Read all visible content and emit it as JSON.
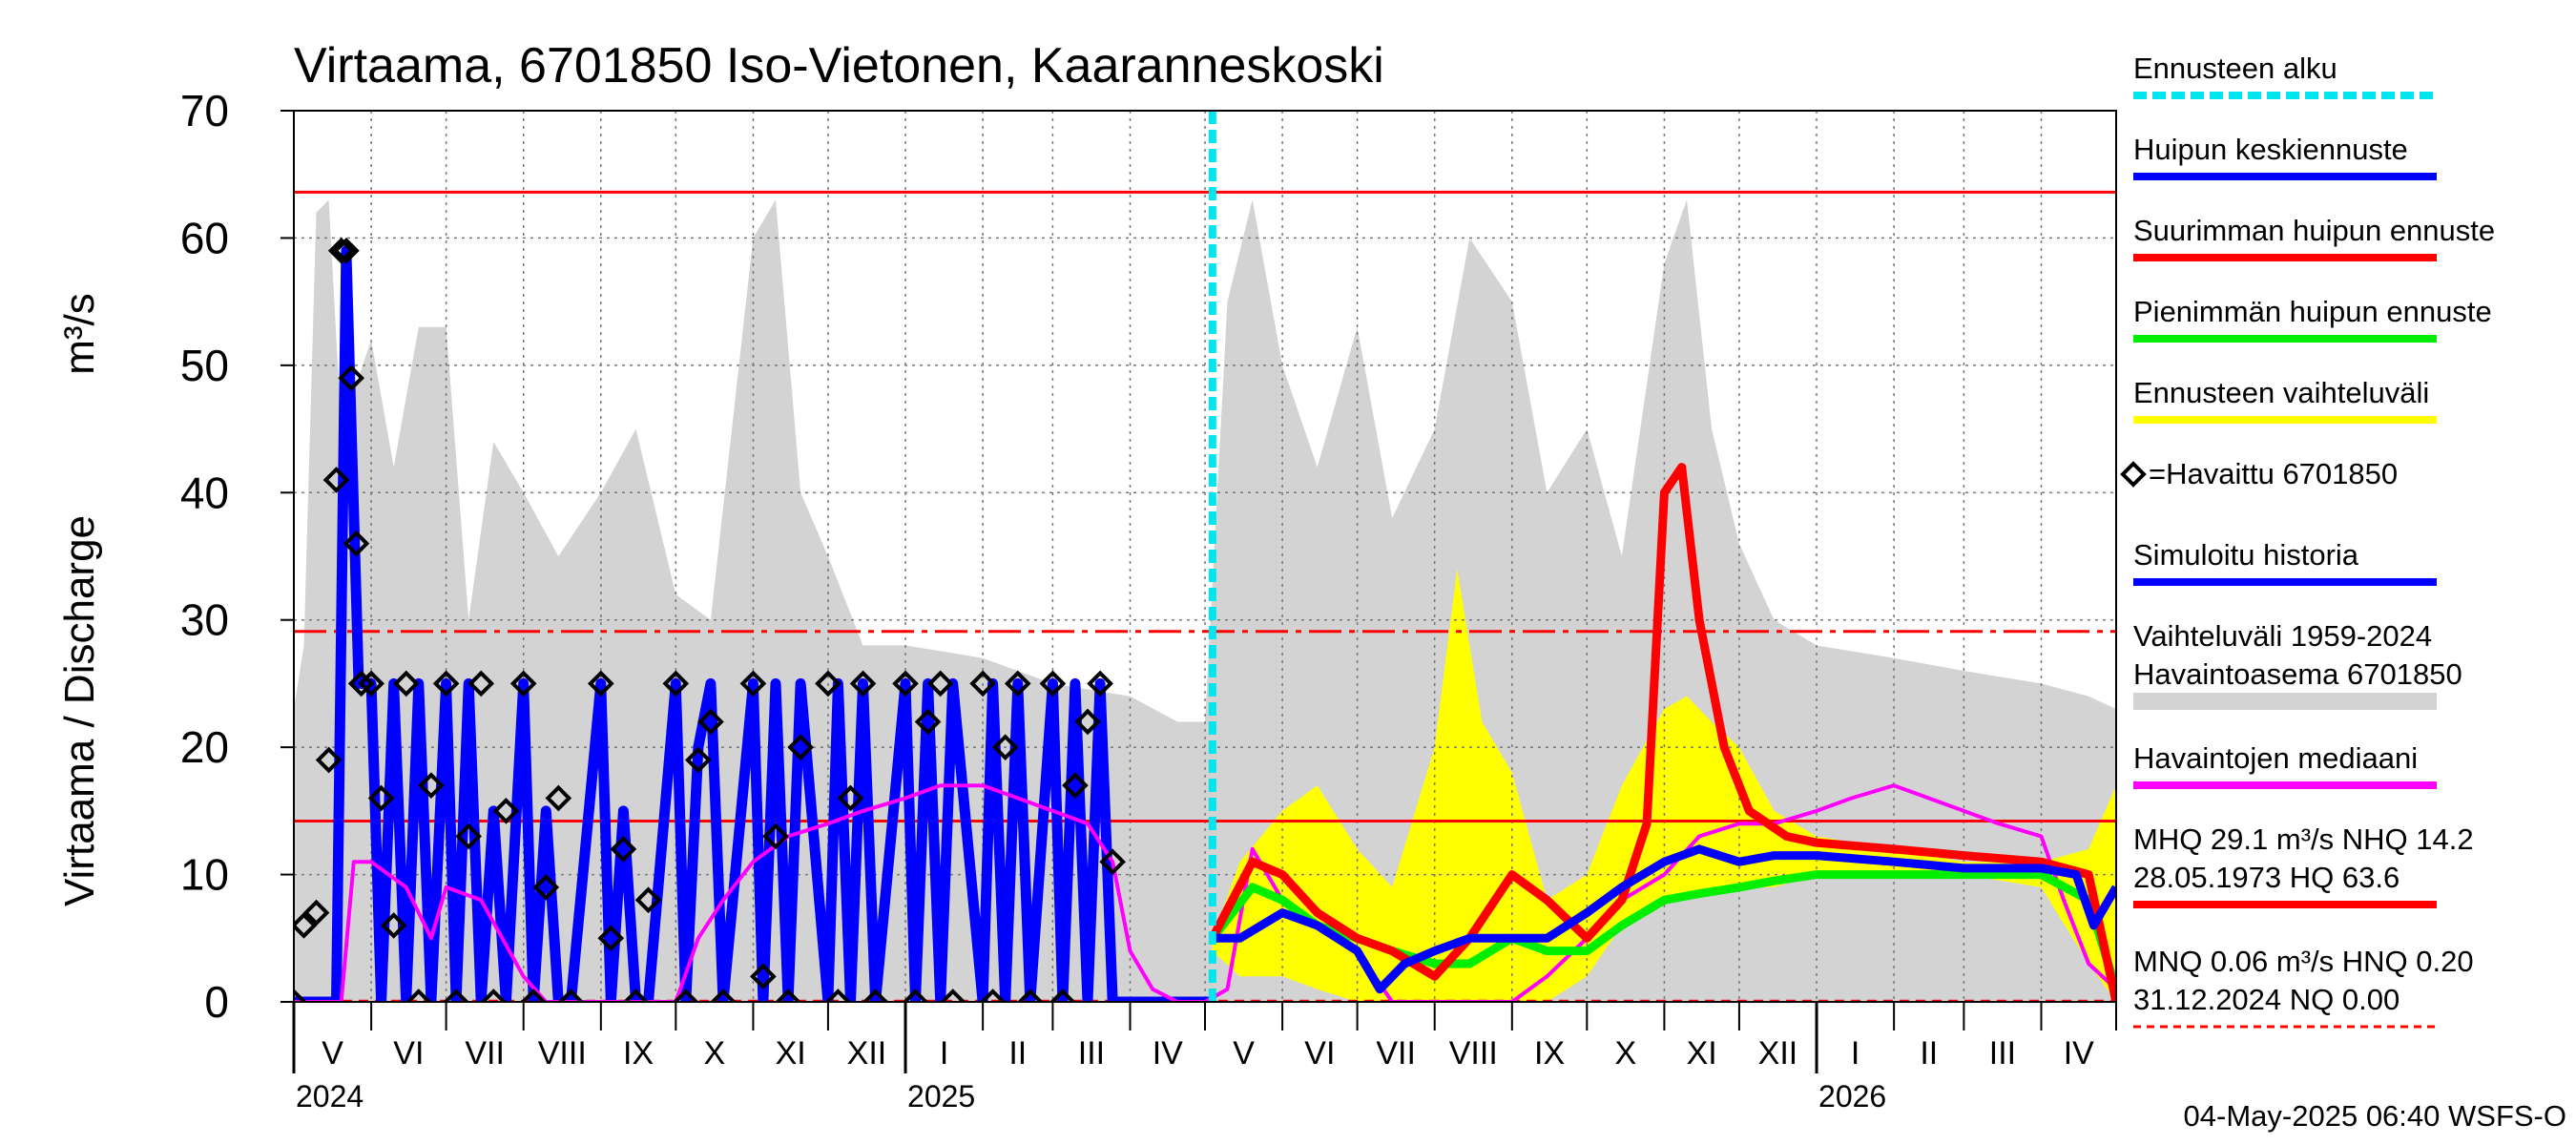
{
  "chart_data": {
    "type": "line",
    "title": "Virtaama, 6701850 Iso-Vietonen, Kaaranneskoski",
    "ylabel_left": "Virtaama / Discharge",
    "ylabel_unit": "m³/s",
    "ylim": [
      0,
      70
    ],
    "yticks": [
      0,
      10,
      20,
      30,
      40,
      50,
      60,
      70
    ],
    "yticks_labels": [
      "0",
      "10",
      "20",
      "30",
      "40",
      "50",
      "60",
      "70"
    ],
    "x_axis": {
      "start": "2024-05-01",
      "end": "2026-05-01",
      "month_labels": [
        "V",
        "VI",
        "VII",
        "VIII",
        "IX",
        "X",
        "XI",
        "XII",
        "I",
        "II",
        "III",
        "IV",
        "V",
        "VI",
        "VII",
        "VIII",
        "IX",
        "X",
        "XI",
        "XII",
        "I",
        "II",
        "III",
        "IV"
      ],
      "year_labels": [
        {
          "text": "2024",
          "date": "2024-05-01"
        },
        {
          "text": "2025",
          "date": "2025-01-01"
        },
        {
          "text": "2026",
          "date": "2026-01-01"
        }
      ]
    },
    "grid": true,
    "forecast_start": "2025-05-04",
    "reference_lines": [
      {
        "name": "HQ",
        "value": 63.6,
        "style": "solid",
        "color": "#ff0000"
      },
      {
        "name": "MHQ",
        "value": 29.1,
        "style": "dashdot",
        "color": "#ff0000"
      },
      {
        "name": "NHQ",
        "value": 14.2,
        "style": "solid",
        "color": "#ff0000"
      },
      {
        "name": "MNQ",
        "value": 0.06,
        "style": "dashed",
        "color": "#ff0000"
      }
    ],
    "series": [
      {
        "name": "Vaihteluväli 1959-2024 Havaintoasema 6701850",
        "kind": "band",
        "color": "#d3d3d3",
        "x": [
          "2024-05-01",
          "2024-05-05",
          "2024-05-10",
          "2024-05-15",
          "2024-05-20",
          "2024-06-01",
          "2024-06-10",
          "2024-06-20",
          "2024-07-01",
          "2024-07-10",
          "2024-07-20",
          "2024-08-01",
          "2024-08-15",
          "2024-09-01",
          "2024-09-15",
          "2024-10-01",
          "2024-10-15",
          "2024-11-01",
          "2024-11-10",
          "2024-11-20",
          "2024-12-01",
          "2024-12-15",
          "2025-01-01",
          "2025-02-01",
          "2025-03-01",
          "2025-04-01",
          "2025-04-20",
          "2025-05-01",
          "2025-05-10",
          "2025-05-20",
          "2025-06-01",
          "2025-06-15",
          "2025-07-01",
          "2025-07-15",
          "2025-08-01",
          "2025-08-15",
          "2025-09-01",
          "2025-09-15",
          "2025-10-01",
          "2025-10-15",
          "2025-11-01",
          "2025-11-10",
          "2025-11-20",
          "2025-12-01",
          "2025-12-15",
          "2026-01-01",
          "2026-02-01",
          "2026-03-01",
          "2026-04-01",
          "2026-04-20",
          "2026-05-01"
        ],
        "upper": [
          23,
          28,
          62,
          63,
          45,
          52,
          42,
          53,
          53,
          30,
          44,
          40,
          35,
          40,
          45,
          32,
          30,
          60,
          63,
          40,
          35,
          28,
          28,
          27,
          25,
          24,
          22,
          22,
          55,
          63,
          50,
          42,
          53,
          38,
          45,
          60,
          55,
          40,
          45,
          35,
          58,
          63,
          45,
          36,
          30,
          28,
          27,
          26,
          25,
          24,
          23
        ],
        "lower": [
          0,
          0,
          0,
          0,
          0,
          0,
          0,
          0,
          0,
          0,
          0,
          0,
          0,
          0,
          0,
          0,
          0,
          0,
          0,
          0,
          0,
          0,
          0,
          0,
          0,
          0,
          0,
          0,
          0,
          0,
          0,
          0,
          0,
          0,
          0,
          0,
          0,
          0,
          0,
          0,
          0,
          0,
          0,
          0,
          0,
          0,
          0,
          0,
          0,
          0,
          0
        ]
      },
      {
        "name": "Ennusteen vaihteluväli",
        "kind": "band",
        "color": "#ffff00",
        "x": [
          "2025-05-04",
          "2025-05-15",
          "2025-06-01",
          "2025-06-15",
          "2025-07-01",
          "2025-07-15",
          "2025-08-01",
          "2025-08-10",
          "2025-08-20",
          "2025-09-01",
          "2025-09-15",
          "2025-10-01",
          "2025-10-15",
          "2025-11-01",
          "2025-11-10",
          "2025-11-20",
          "2025-12-01",
          "2025-12-15",
          "2026-01-01",
          "2026-02-01",
          "2026-03-01",
          "2026-04-01",
          "2026-04-20",
          "2026-05-01"
        ],
        "upper": [
          5,
          11,
          15,
          17,
          12,
          9,
          20,
          34,
          22,
          18,
          8,
          10,
          17,
          23,
          24,
          22,
          20,
          15,
          13,
          12,
          11,
          11,
          12,
          17
        ],
        "lower": [
          4,
          2,
          2,
          1,
          0,
          0,
          0,
          0,
          0,
          0,
          0,
          2,
          6,
          8,
          8,
          9,
          9,
          9,
          10,
          10,
          10,
          9,
          3,
          0
        ]
      },
      {
        "name": "Suurimman huipun ennuste",
        "kind": "line",
        "color": "#ff0000",
        "x": [
          "2025-05-04",
          "2025-05-20",
          "2025-06-01",
          "2025-06-15",
          "2025-07-01",
          "2025-07-15",
          "2025-08-01",
          "2025-08-15",
          "2025-09-01",
          "2025-09-15",
          "2025-10-01",
          "2025-10-15",
          "2025-10-25",
          "2025-11-01",
          "2025-11-08",
          "2025-11-15",
          "2025-11-25",
          "2025-12-05",
          "2025-12-20",
          "2026-01-01",
          "2026-02-01",
          "2026-03-01",
          "2026-04-01",
          "2026-04-20",
          "2026-05-01"
        ],
        "y": [
          5,
          11,
          10,
          7,
          5,
          4,
          2,
          5,
          10,
          8,
          5,
          8,
          14,
          40,
          42,
          30,
          20,
          15,
          13,
          12.5,
          12,
          11.5,
          11,
          10,
          0
        ]
      },
      {
        "name": "Pienimmän huipun ennuste",
        "kind": "line",
        "color": "#00ee00",
        "x": [
          "2025-05-04",
          "2025-05-20",
          "2025-06-01",
          "2025-06-15",
          "2025-07-01",
          "2025-07-15",
          "2025-08-01",
          "2025-08-15",
          "2025-09-01",
          "2025-09-15",
          "2025-10-01",
          "2025-10-15",
          "2025-11-01",
          "2025-11-15",
          "2025-12-01",
          "2025-12-15",
          "2026-01-01",
          "2026-02-01",
          "2026-03-01",
          "2026-04-01",
          "2026-04-20",
          "2026-05-01"
        ],
        "y": [
          5,
          9,
          8,
          6,
          5,
          4,
          3,
          3,
          5,
          4,
          4,
          6,
          8,
          8.5,
          9,
          9.5,
          10,
          10,
          10,
          10,
          8,
          1
        ]
      },
      {
        "name": "Havaintojen mediaani",
        "kind": "line",
        "color": "#ff00ff",
        "x": [
          "2024-05-01",
          "2024-05-20",
          "2024-05-25",
          "2024-06-01",
          "2024-06-15",
          "2024-06-25",
          "2024-07-01",
          "2024-07-15",
          "2024-08-01",
          "2024-08-10",
          "2024-08-20",
          "2024-09-01",
          "2024-09-15",
          "2024-10-01",
          "2024-10-10",
          "2024-10-20",
          "2024-11-01",
          "2024-11-15",
          "2024-12-01",
          "2024-12-15",
          "2025-01-01",
          "2025-01-15",
          "2025-02-01",
          "2025-02-15",
          "2025-03-01",
          "2025-03-15",
          "2025-03-25",
          "2025-04-01",
          "2025-04-10",
          "2025-04-20",
          "2025-05-01",
          "2025-05-10",
          "2025-05-20",
          "2025-06-01",
          "2025-06-15",
          "2025-07-01",
          "2025-07-15",
          "2025-08-01",
          "2025-08-15",
          "2025-09-01",
          "2025-09-15",
          "2025-10-01",
          "2025-10-15",
          "2025-11-01",
          "2025-11-15",
          "2025-12-01",
          "2025-12-15",
          "2026-01-01",
          "2026-01-15",
          "2026-02-01",
          "2026-02-15",
          "2026-03-01",
          "2026-03-15",
          "2026-04-01",
          "2026-04-10",
          "2026-04-20",
          "2026-05-01"
        ],
        "y": [
          0,
          0,
          11,
          11,
          9,
          5,
          9,
          8,
          2,
          0,
          0,
          0,
          0,
          0,
          5,
          8,
          11,
          13,
          14,
          15,
          16,
          17,
          17,
          16,
          15,
          14,
          11,
          4,
          1,
          0,
          0,
          1,
          12,
          8,
          6,
          4,
          0,
          0,
          0,
          0,
          2,
          5,
          8,
          10,
          13,
          14,
          14,
          15,
          16,
          17,
          16,
          15,
          14,
          13,
          8,
          3,
          1
        ]
      },
      {
        "name": "Huipun keskiennuste",
        "kind": "line",
        "color": "#0000ff",
        "x": [
          "2025-05-04",
          "2025-05-15",
          "2025-06-01",
          "2025-06-15",
          "2025-07-01",
          "2025-07-10",
          "2025-07-20",
          "2025-08-01",
          "2025-08-15",
          "2025-09-01",
          "2025-09-15",
          "2025-10-01",
          "2025-10-15",
          "2025-11-01",
          "2025-11-15",
          "2025-12-01",
          "2025-12-15",
          "2026-01-01",
          "2026-02-01",
          "2026-03-01",
          "2026-04-01",
          "2026-04-15",
          "2026-04-22",
          "2026-05-01"
        ],
        "y": [
          5,
          5,
          7,
          6,
          4,
          1,
          3,
          4,
          5,
          5,
          5,
          7,
          9,
          11,
          12,
          11,
          11.5,
          11.5,
          11,
          10.5,
          10.5,
          10,
          6,
          9
        ]
      },
      {
        "name": "Simuloitu historia",
        "kind": "line",
        "color": "#0000ff",
        "x": [
          "2024-05-01",
          "2024-05-18",
          "2024-05-22",
          "2024-05-27",
          "2024-06-01",
          "2024-06-05",
          "2024-06-10",
          "2024-06-15",
          "2024-06-20",
          "2024-06-25",
          "2024-07-01",
          "2024-07-05",
          "2024-07-10",
          "2024-07-15",
          "2024-07-20",
          "2024-07-25",
          "2024-08-01",
          "2024-08-05",
          "2024-08-10",
          "2024-08-15",
          "2024-08-20",
          "2024-09-01",
          "2024-09-05",
          "2024-09-10",
          "2024-09-15",
          "2024-09-20",
          "2024-10-01",
          "2024-10-05",
          "2024-10-10",
          "2024-10-15",
          "2024-10-20",
          "2024-11-01",
          "2024-11-05",
          "2024-11-10",
          "2024-11-15",
          "2024-11-20",
          "2024-12-01",
          "2024-12-05",
          "2024-12-10",
          "2024-12-15",
          "2024-12-20",
          "2025-01-01",
          "2025-01-05",
          "2025-01-10",
          "2025-01-15",
          "2025-01-20",
          "2025-02-01",
          "2025-02-05",
          "2025-02-10",
          "2025-02-15",
          "2025-02-20",
          "2025-03-01",
          "2025-03-05",
          "2025-03-10",
          "2025-03-15",
          "2025-03-20",
          "2025-03-25",
          "2025-04-01",
          "2025-04-15",
          "2025-05-04"
        ],
        "y": [
          0,
          0,
          59,
          25,
          25,
          0,
          25,
          0,
          25,
          0,
          25,
          0,
          25,
          0,
          15,
          0,
          25,
          0,
          15,
          0,
          0,
          25,
          0,
          15,
          0,
          0,
          25,
          0,
          20,
          25,
          0,
          25,
          0,
          25,
          0,
          25,
          0,
          25,
          0,
          25,
          0,
          25,
          0,
          25,
          0,
          25,
          0,
          25,
          0,
          25,
          0,
          25,
          0,
          25,
          0,
          25,
          0,
          0,
          0,
          0
        ]
      },
      {
        "name": "Havaittu 6701850",
        "kind": "scatter",
        "color": "#000000",
        "marker": "diamond",
        "x": [
          "2024-05-01",
          "2024-05-05",
          "2024-05-10",
          "2024-05-15",
          "2024-05-18",
          "2024-05-20",
          "2024-05-22",
          "2024-05-24",
          "2024-05-26",
          "2024-05-28",
          "2024-06-01",
          "2024-06-05",
          "2024-06-10",
          "2024-06-15",
          "2024-06-20",
          "2024-06-25",
          "2024-07-01",
          "2024-07-05",
          "2024-07-10",
          "2024-07-15",
          "2024-07-20",
          "2024-07-25",
          "2024-08-01",
          "2024-08-05",
          "2024-08-10",
          "2024-08-15",
          "2024-08-20",
          "2024-09-01",
          "2024-09-05",
          "2024-09-10",
          "2024-09-15",
          "2024-09-20",
          "2024-10-01",
          "2024-10-05",
          "2024-10-10",
          "2024-10-15",
          "2024-10-20",
          "2024-11-01",
          "2024-11-05",
          "2024-11-10",
          "2024-11-15",
          "2024-11-20",
          "2024-12-01",
          "2024-12-05",
          "2024-12-10",
          "2024-12-15",
          "2024-12-20",
          "2025-01-01",
          "2025-01-05",
          "2025-01-10",
          "2025-01-15",
          "2025-01-20",
          "2025-02-01",
          "2025-02-05",
          "2025-02-10",
          "2025-02-15",
          "2025-02-20",
          "2025-03-01",
          "2025-03-05",
          "2025-03-10",
          "2025-03-15",
          "2025-03-20",
          "2025-03-25"
        ],
        "y": [
          0,
          6,
          7,
          19,
          41,
          59,
          59,
          49,
          36,
          25,
          25,
          16,
          6,
          25,
          0,
          17,
          25,
          0,
          13,
          25,
          0,
          15,
          25,
          0,
          9,
          16,
          0,
          25,
          5,
          12,
          0,
          8,
          25,
          0,
          19,
          22,
          0,
          25,
          2,
          13,
          0,
          20,
          25,
          0,
          16,
          25,
          0,
          25,
          0,
          22,
          25,
          0,
          25,
          0,
          20,
          25,
          0,
          25,
          0,
          17,
          22,
          25,
          11
        ]
      }
    ],
    "legend": {
      "placement": "right",
      "entries": [
        {
          "label": "Ennusteen alku",
          "color": "#00e5ee",
          "style": "dashed"
        },
        {
          "label": "Huipun keskiennuste",
          "color": "#0000ff",
          "style": "solid"
        },
        {
          "label": "Suurimman huipun ennuste",
          "color": "#ff0000",
          "style": "solid"
        },
        {
          "label": "Pienimmän huipun ennuste",
          "color": "#00ee00",
          "style": "solid"
        },
        {
          "label": "Ennusteen vaihteluväli",
          "color": "#ffff00",
          "style": "solid"
        },
        {
          "label": "=Havaittu 6701850",
          "color": "#000000",
          "style": "marker"
        },
        {
          "label": "Simuloitu historia",
          "color": "#0000ff",
          "style": "solid"
        },
        {
          "label": "Vaihteluväli 1959-2024",
          "label2": " Havaintoasema 6701850",
          "color": "#d3d3d3",
          "style": "thick"
        },
        {
          "label": "Havaintojen mediaani",
          "color": "#ff00ff",
          "style": "solid"
        },
        {
          "label": "MHQ 29.1 m³/s NHQ 14.2",
          "label2": "28.05.1973 HQ 63.6",
          "color": "#ff0000",
          "style": "solid"
        },
        {
          "label": "MNQ 0.06 m³/s HNQ 0.20",
          "label2": "31.12.2024 NQ 0.00",
          "color": "#ff0000",
          "style": "dashed"
        }
      ]
    },
    "footer": "04-May-2025 06:40 WSFS-O"
  }
}
